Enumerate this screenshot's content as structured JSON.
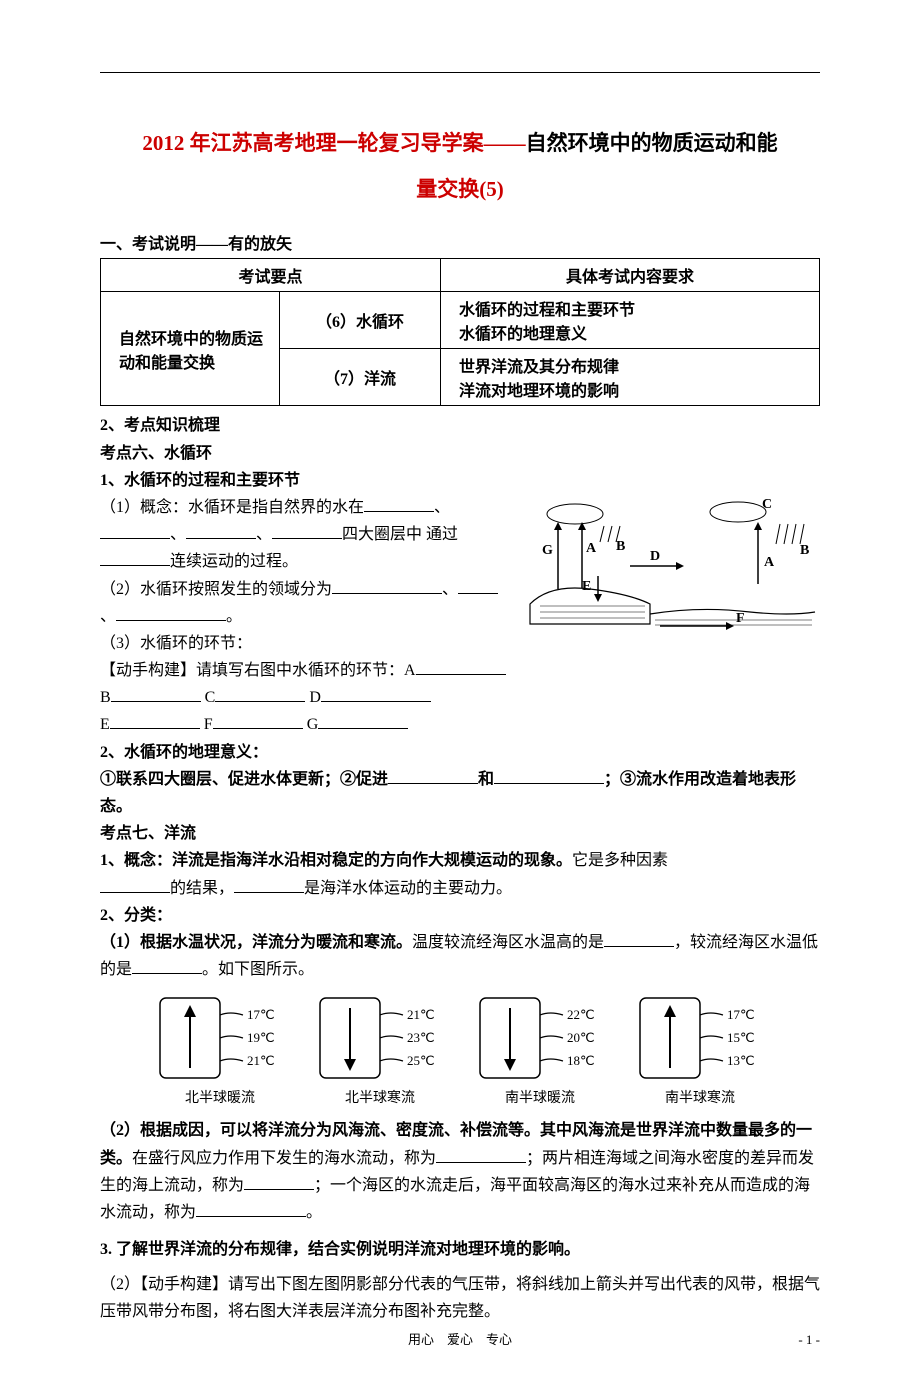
{
  "title_part1": "2012 年江苏高考地理一轮复习导学案——",
  "title_part2": "自然环境中的物质运动和能",
  "title_line2": "量交换(5)",
  "section1_heading": "一、考试说明——有的放矢",
  "table": {
    "head": {
      "c1": "考试要点",
      "c2": "具体考试内容要求"
    },
    "row1": {
      "a": "自然环境中的物质运动和能量交换",
      "b": "（6）水循环",
      "c": "水循环的过程和主要环节\n水循环的地理意义"
    },
    "row2": {
      "b": "（7）洋流",
      "c": "世界洋流及其分布规律\n洋流对地理环境的影响"
    }
  },
  "p2_heading": "2、考点知识梳理",
  "kp6_heading": "考点六、水循环",
  "kp6_1_heading": "1、水循环的过程和主要环节",
  "kp6_1_1_a": "（1）概念：水循环是指自然界的水在",
  "kp6_1_1_b": "、",
  "kp6_1_1_c": "、",
  "kp6_1_1_d": "、",
  "kp6_1_1_e": "四大圈层中",
  "kp6_1_1_f": "通过",
  "kp6_1_1_g": "连续运动的过程。",
  "kp6_1_2_a": "（2）水循环按照发生的领域分为",
  "kp6_1_2_b": "、",
  "kp6_1_2_c": "、",
  "kp6_1_2_d": "。",
  "kp6_1_3": "（3）水循环的环节：",
  "kp6_build_a": "【动手构建】请填写右图中水循环的环节：A",
  "kp6_build_line2_B": "B",
  "kp6_build_line2_C": "C",
  "kp6_build_line2_D": "D",
  "kp6_build_line3_E": "E",
  "kp6_build_line3_F": "F",
  "kp6_build_line3_G": "G",
  "kp6_2_heading": "2、水循环的地理意义：",
  "kp6_2_text_a": "①联系四大圈层、促进水体更新；②促进",
  "kp6_2_text_b": "和",
  "kp6_2_text_c": "；③流水作用改造着地表形态。",
  "kp7_heading": "考点七、洋流",
  "kp7_1_a": "1、概念：洋流是指海洋水沿相对稳定的方向作大规模运动的现象。",
  "kp7_1_b": "它是多种因素",
  "kp7_1_c": "的结果，",
  "kp7_1_d": "是海洋水体运动的主要动力。",
  "kp7_2_heading": "2、分类：",
  "kp7_2_1_a": "（1）根据水温状况，洋流分为暖流和寒流。",
  "kp7_2_1_b": "温度较流经海区水温高的是",
  "kp7_2_1_c": "，较流经海区水温低的是",
  "kp7_2_1_d": "。如下图所示。",
  "currents": {
    "items": [
      {
        "label": "北半球暖流",
        "temps": [
          "17℃",
          "19℃",
          "21℃"
        ],
        "arrow": "up"
      },
      {
        "label": "北半球寒流",
        "temps": [
          "21℃",
          "23℃",
          "25℃"
        ],
        "arrow": "down"
      },
      {
        "label": "南半球暖流",
        "temps": [
          "22℃",
          "20℃",
          "18℃"
        ],
        "arrow": "down"
      },
      {
        "label": "南半球寒流",
        "temps": [
          "17℃",
          "15℃",
          "13℃"
        ],
        "arrow": "up"
      }
    ],
    "box_stroke": "#000000",
    "box_fill": "#ffffff",
    "text_color": "#000000",
    "font_size": 13
  },
  "kp7_2_2_a": "（2）根据成因，可以将洋流分为风海流、密度流、补偿流等。其中风海流是世界洋流中数量最多的一类。",
  "kp7_2_2_b": "在盛行风应力作用下发生的海水流动，称为",
  "kp7_2_2_c": "；两片相连海域之间海水密度的差异而发生的海上流动，称为",
  "kp7_2_2_d": "；一个海区的水流走后，海平面较高海区的海水过来补充从而造成的海水流动，称为",
  "kp7_2_2_e": "。",
  "kp7_3_heading": "3. 了解世界洋流的分布规律，结合实例说明洋流对地理环境的影响。",
  "kp7_3_text": "（2）【动手构建】请写出下图左图阴影部分代表的气压带，将斜线加上箭头并写出代表的风带，根据气压带风带分布图，将右图大洋表层洋流分布图补充完整。",
  "diagram": {
    "labels": [
      "A",
      "B",
      "C",
      "D",
      "E",
      "F",
      "G"
    ],
    "stroke": "#000000",
    "fill_land": "#ffffff",
    "font_size": 14
  },
  "footer_text": "用心　爱心　专心",
  "page_number": "- 1 -",
  "colors": {
    "red": "#cc0000",
    "black": "#000000",
    "background": "#ffffff"
  }
}
